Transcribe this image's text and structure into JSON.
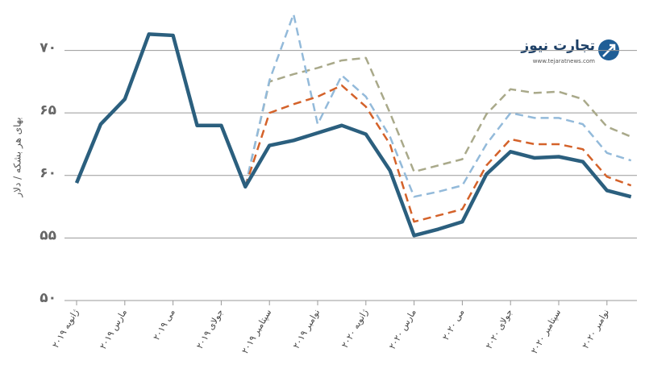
{
  "chart_data": {
    "type": "line",
    "ylabel": "بهای هر بشکه / دلار",
    "categories": [
      "ژانویه ۲۰۱۹",
      null,
      "مارس ۲۰۱۹",
      null,
      "می ۲۰۱۹",
      null,
      "جولای ۲۰۱۹",
      null,
      "سپتامبر ۲۰۱۹",
      null,
      "نوامبر ۲۰۱۹",
      null,
      "ژانویه ۲۰۲۰",
      null,
      "مارس ۲۰۲۰",
      null,
      "می ۲۰۲۰",
      null,
      "جولای ۲۰۲۰",
      null,
      "سپتامبر ۲۰۲۰",
      null,
      "نوامبر ۲۰۲۰",
      null
    ],
    "series": [
      {
        "color": "#a9a98a",
        "dashed": true,
        "values": [
          null,
          null,
          null,
          null,
          null,
          null,
          null,
          59.1,
          67.5,
          68.1,
          68.6,
          69.2,
          69.4,
          65.0,
          60.3,
          60.8,
          61.3,
          64.9,
          66.9,
          66.6,
          66.7,
          66.1,
          63.9,
          63.1
        ]
      },
      {
        "color": "#93bada",
        "dashed": true,
        "values": [
          null,
          null,
          null,
          null,
          null,
          null,
          null,
          59.1,
          67.6,
          72.9,
          64.1,
          68.0,
          66.3,
          63.1,
          58.3,
          58.7,
          59.2,
          62.5,
          65.0,
          64.6,
          64.6,
          64.1,
          61.8,
          61.2
        ]
      },
      {
        "color": "#d4622a",
        "dashed": true,
        "values": [
          null,
          null,
          null,
          null,
          null,
          null,
          null,
          59.1,
          65.0,
          65.7,
          66.3,
          67.2,
          65.5,
          62.5,
          56.3,
          56.8,
          57.3,
          60.8,
          62.9,
          62.5,
          62.5,
          62.1,
          59.9,
          59.2
        ]
      },
      {
        "color": "#2b5f7e",
        "dashed": false,
        "values": [
          59.4,
          64.1,
          66.1,
          71.3,
          71.2,
          64.0,
          64.0,
          59.1,
          62.4,
          62.8,
          63.4,
          64.0,
          63.3,
          60.4,
          55.2,
          55.7,
          56.3,
          60.1,
          61.9,
          61.4,
          61.5,
          61.1,
          58.8,
          58.3
        ]
      }
    ],
    "ylim": [
      50,
      73
    ],
    "yticks": [
      {
        "value": 50,
        "label": "۵۰"
      },
      {
        "value": 55,
        "label": "۵۵"
      },
      {
        "value": 60,
        "label": "۶۰"
      },
      {
        "value": 65,
        "label": "۶۵"
      },
      {
        "value": 70,
        "label": "۷۰"
      }
    ],
    "grid": true
  },
  "logo": {
    "name": "تجارت نیوز",
    "url": "www.tejaratnews.com"
  }
}
